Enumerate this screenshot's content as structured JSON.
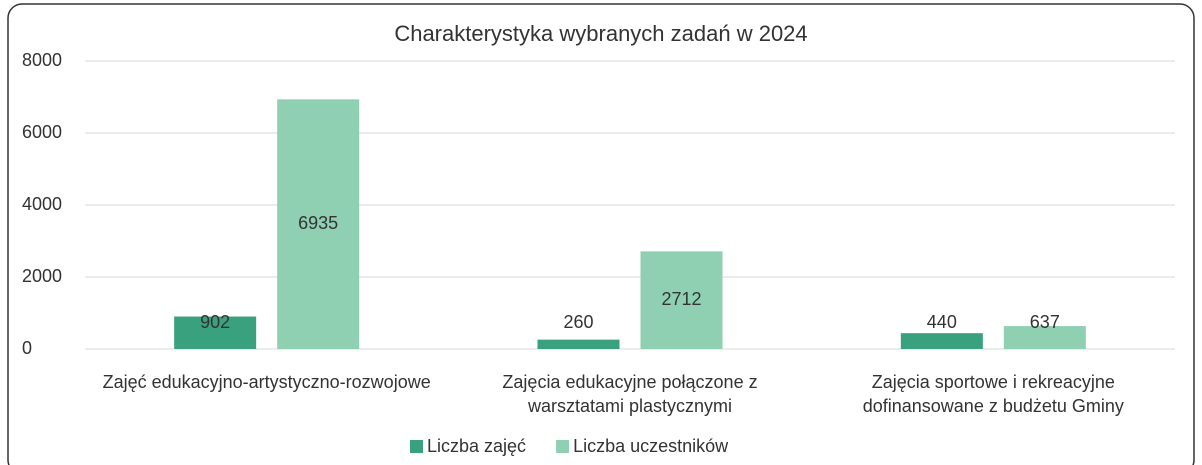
{
  "chart_data": {
    "type": "bar",
    "title": "Charakterystyka wybranych zadań w 2024",
    "categories": [
      "Zajęć edukacyjno-artystyczno-rozwojowe",
      "Zajęcia edukacyjne połączone z warsztatami plastycznymi",
      "Zajęcia sportowe i rekreacyjne dofinansowane z budżetu Gminy"
    ],
    "series": [
      {
        "name": "Liczba zajęć",
        "color": "#3aa17e",
        "values": [
          902,
          260,
          440
        ]
      },
      {
        "name": "Liczba uczestników",
        "color": "#8fd0b3",
        "values": [
          6935,
          2712,
          637
        ]
      }
    ],
    "ylim": [
      0,
      8000
    ],
    "yticks": [
      0,
      2000,
      4000,
      6000,
      8000
    ],
    "grid": true,
    "legend": "bottom"
  }
}
